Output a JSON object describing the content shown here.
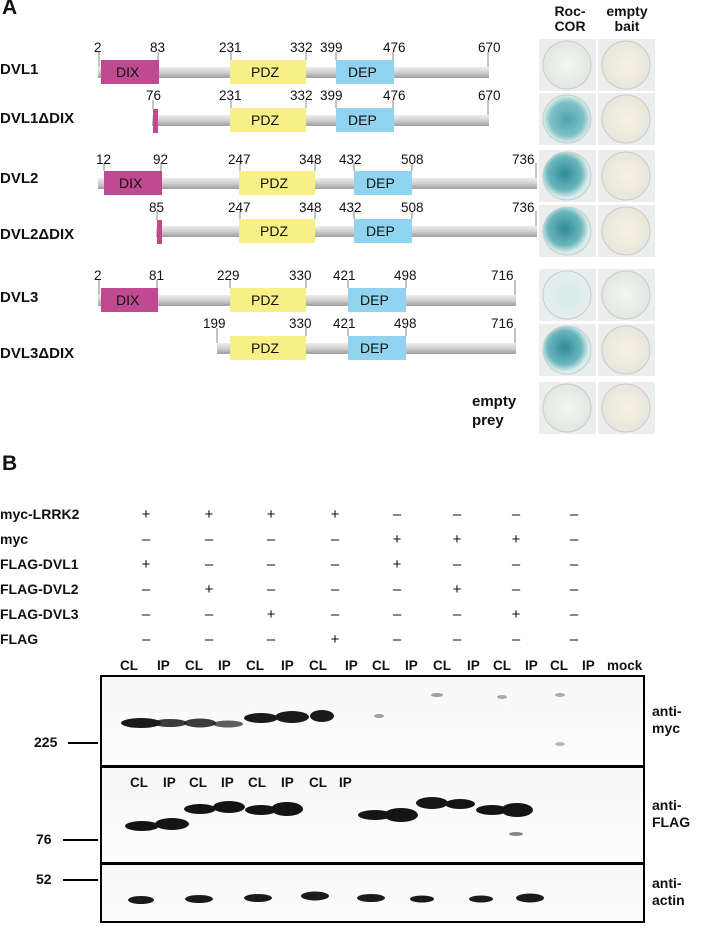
{
  "panels": {
    "a_label": "A",
    "b_label": "B"
  },
  "panel_a": {
    "column_headers": {
      "roccor": "Roc-\nCOR",
      "empty_bait": "empty\nbait"
    },
    "empty_prey_label": "empty\nprey",
    "constructs": [
      {
        "name": "DVL1",
        "start": "2",
        "dix_end": "83",
        "pdz_start": "231",
        "pdz_end": "332",
        "dep_start": "399",
        "dep_end": "476",
        "end": "670"
      },
      {
        "name": "DVL1ΔDIX",
        "start": "76",
        "pdz_start": "231",
        "pdz_end": "332",
        "dep_start": "399",
        "dep_end": "476",
        "end": "670"
      },
      {
        "name": "DVL2",
        "start": "12",
        "dix_end": "92",
        "pdz_start": "247",
        "pdz_end": "348",
        "dep_start": "432",
        "dep_end": "508",
        "end": "736"
      },
      {
        "name": "DVL2ΔDIX",
        "start": "85",
        "pdz_start": "247",
        "pdz_end": "348",
        "dep_start": "432",
        "dep_end": "508",
        "end": "736"
      },
      {
        "name": "DVL3",
        "start": "2",
        "dix_end": "81",
        "pdz_start": "229",
        "pdz_end": "330",
        "dep_start": "421",
        "dep_end": "498",
        "end": "716"
      },
      {
        "name": "DVL3ΔDIX",
        "start": "199",
        "pdz_end": "330",
        "dep_start": "421",
        "dep_end": "498",
        "end": "716"
      }
    ],
    "domains": {
      "dix": "DIX",
      "pdz": "PDZ",
      "dep": "DEP"
    },
    "colors": {
      "dix": "#c04a91",
      "pdz": "#f8ef86",
      "dep": "#8fd3ee",
      "backbone": "#c8c8c8"
    }
  },
  "panel_b": {
    "rows": [
      {
        "label": "myc-LRRK2",
        "values": [
          "+",
          "+",
          "+",
          "+",
          "–",
          "–",
          "–",
          "–"
        ]
      },
      {
        "label": "myc",
        "values": [
          "–",
          "–",
          "–",
          "–",
          "+",
          "+",
          "+",
          "–"
        ]
      },
      {
        "label": "FLAG-DVL1",
        "values": [
          "+",
          "–",
          "–",
          "–",
          "+",
          "–",
          "–",
          "–"
        ]
      },
      {
        "label": "FLAG-DVL2",
        "values": [
          "–",
          "+",
          "–",
          "–",
          "–",
          "+",
          "–",
          "–"
        ]
      },
      {
        "label": "FLAG-DVL3",
        "values": [
          "–",
          "–",
          "+",
          "–",
          "–",
          "–",
          "+",
          "–"
        ]
      },
      {
        "label": "FLAG",
        "values": [
          "–",
          "–",
          "–",
          "+",
          "–",
          "–",
          "–",
          "–"
        ]
      }
    ],
    "lanes_top": [
      "CL",
      "IP",
      "CL",
      "IP",
      "CL",
      "IP",
      "CL",
      "IP",
      "CL",
      "IP",
      "CL",
      "IP",
      "CL",
      "IP",
      "CL",
      "IP",
      "mock"
    ],
    "lanes_flag": [
      "CL",
      "IP",
      "CL",
      "IP",
      "CL",
      "IP",
      "CL",
      "IP"
    ],
    "blots": [
      {
        "label": "anti-\nmyc",
        "marker": "225"
      },
      {
        "label": "anti-\nFLAG",
        "marker": "76"
      },
      {
        "label": "anti-\nactin",
        "marker": "52"
      }
    ]
  }
}
